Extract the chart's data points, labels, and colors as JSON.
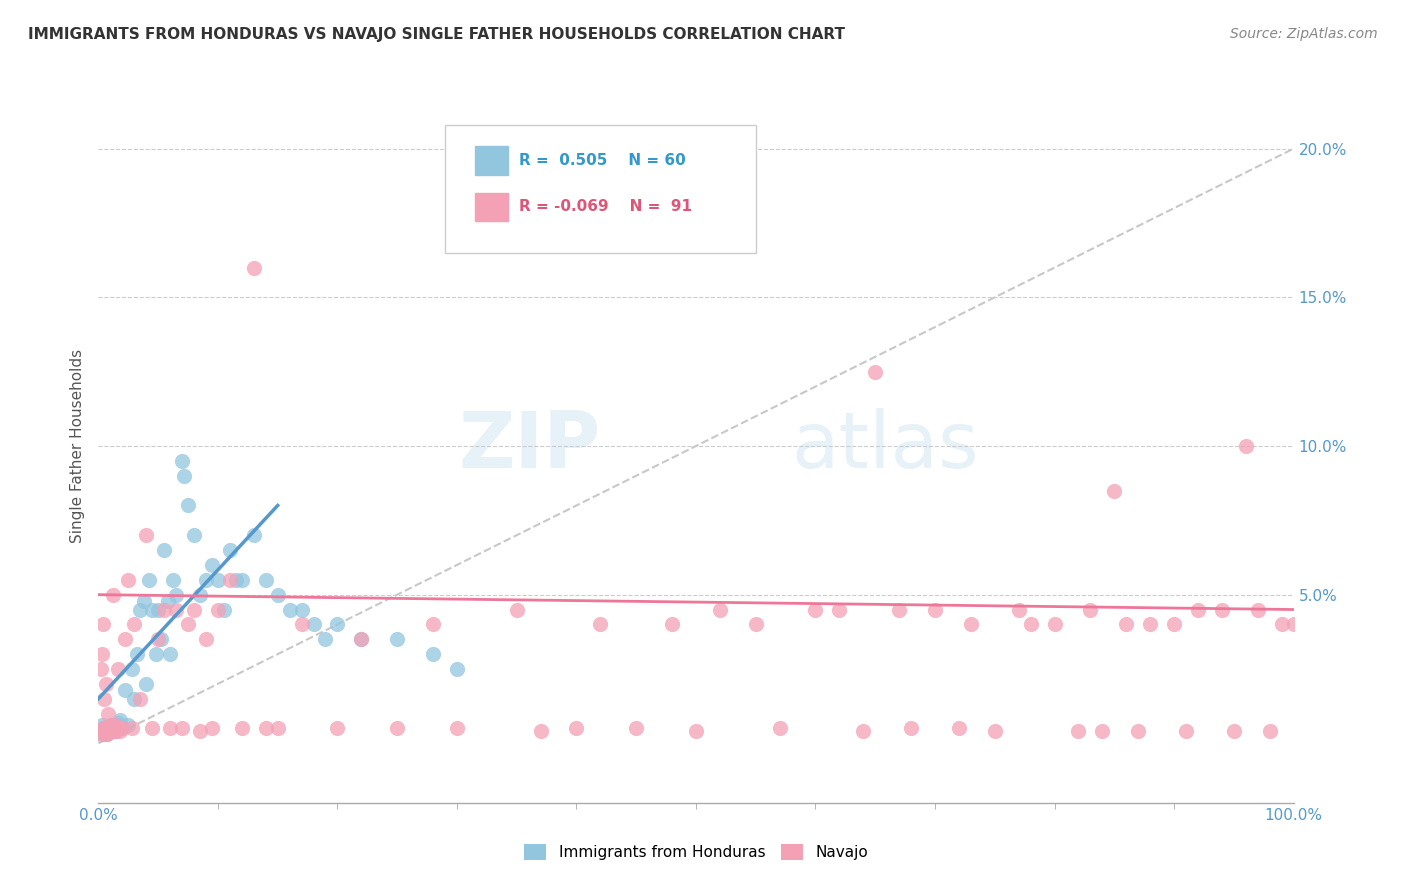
{
  "title": "IMMIGRANTS FROM HONDURAS VS NAVAJO SINGLE FATHER HOUSEHOLDS CORRELATION CHART",
  "source": "Source: ZipAtlas.com",
  "ylabel": "Single Father Households",
  "xlim": [
    0,
    100
  ],
  "ylim": [
    -2,
    22
  ],
  "legend_blue_label": "Immigrants from Honduras",
  "legend_pink_label": "Navajo",
  "blue_color": "#92C5DE",
  "pink_color": "#F4A0B5",
  "blue_line_color": "#5599CC",
  "pink_line_color": "#EE7799",
  "dashed_line_color": "#C8C8C8",
  "grid_color": "#CCCCCC",
  "ytick_color": "#5599CC",
  "xtick_color": "#5599CC",
  "title_color": "#333333",
  "source_color": "#888888",
  "legend_text_blue_color": "#3399CC",
  "legend_text_pink_color": "#DD5577",
  "blue_scatter": [
    [
      0.2,
      0.4
    ],
    [
      0.3,
      0.6
    ],
    [
      0.4,
      0.3
    ],
    [
      0.5,
      0.5
    ],
    [
      0.6,
      0.4
    ],
    [
      0.7,
      0.3
    ],
    [
      0.8,
      0.5
    ],
    [
      0.9,
      0.4
    ],
    [
      1.0,
      0.6
    ],
    [
      1.1,
      0.4
    ],
    [
      1.2,
      0.5
    ],
    [
      1.3,
      0.6
    ],
    [
      1.4,
      0.4
    ],
    [
      1.5,
      0.5
    ],
    [
      1.6,
      0.7
    ],
    [
      1.7,
      0.5
    ],
    [
      1.8,
      0.8
    ],
    [
      2.0,
      0.5
    ],
    [
      2.2,
      1.8
    ],
    [
      2.5,
      0.6
    ],
    [
      2.8,
      2.5
    ],
    [
      3.0,
      1.5
    ],
    [
      3.2,
      3.0
    ],
    [
      3.5,
      4.5
    ],
    [
      3.8,
      4.8
    ],
    [
      4.0,
      2.0
    ],
    [
      4.2,
      5.5
    ],
    [
      4.5,
      4.5
    ],
    [
      4.8,
      3.0
    ],
    [
      5.0,
      4.5
    ],
    [
      5.2,
      3.5
    ],
    [
      5.5,
      6.5
    ],
    [
      5.8,
      4.8
    ],
    [
      6.0,
      3.0
    ],
    [
      6.2,
      5.5
    ],
    [
      6.5,
      5.0
    ],
    [
      7.0,
      9.5
    ],
    [
      7.2,
      9.0
    ],
    [
      7.5,
      8.0
    ],
    [
      8.0,
      7.0
    ],
    [
      8.5,
      5.0
    ],
    [
      9.0,
      5.5
    ],
    [
      9.5,
      6.0
    ],
    [
      10.0,
      5.5
    ],
    [
      10.5,
      4.5
    ],
    [
      11.0,
      6.5
    ],
    [
      11.5,
      5.5
    ],
    [
      12.0,
      5.5
    ],
    [
      13.0,
      7.0
    ],
    [
      14.0,
      5.5
    ],
    [
      15.0,
      5.0
    ],
    [
      16.0,
      4.5
    ],
    [
      17.0,
      4.5
    ],
    [
      18.0,
      4.0
    ],
    [
      19.0,
      3.5
    ],
    [
      20.0,
      4.0
    ],
    [
      22.0,
      3.5
    ],
    [
      25.0,
      3.5
    ],
    [
      28.0,
      3.0
    ],
    [
      30.0,
      2.5
    ]
  ],
  "pink_scatter": [
    [
      0.1,
      0.3
    ],
    [
      0.2,
      2.5
    ],
    [
      0.3,
      3.0
    ],
    [
      0.35,
      0.5
    ],
    [
      0.4,
      4.0
    ],
    [
      0.45,
      0.5
    ],
    [
      0.5,
      1.5
    ],
    [
      0.55,
      0.3
    ],
    [
      0.6,
      2.0
    ],
    [
      0.7,
      0.5
    ],
    [
      0.75,
      0.3
    ],
    [
      0.8,
      1.0
    ],
    [
      0.9,
      0.5
    ],
    [
      1.0,
      0.4
    ],
    [
      1.1,
      0.6
    ],
    [
      1.2,
      5.0
    ],
    [
      1.3,
      0.4
    ],
    [
      1.4,
      0.6
    ],
    [
      1.5,
      0.4
    ],
    [
      1.6,
      2.5
    ],
    [
      1.7,
      0.5
    ],
    [
      1.8,
      0.4
    ],
    [
      2.0,
      0.5
    ],
    [
      2.2,
      3.5
    ],
    [
      2.5,
      5.5
    ],
    [
      2.8,
      0.5
    ],
    [
      3.0,
      4.0
    ],
    [
      3.5,
      1.5
    ],
    [
      4.0,
      7.0
    ],
    [
      4.5,
      0.5
    ],
    [
      5.0,
      3.5
    ],
    [
      5.5,
      4.5
    ],
    [
      6.0,
      0.5
    ],
    [
      6.5,
      4.5
    ],
    [
      7.0,
      0.5
    ],
    [
      7.5,
      4.0
    ],
    [
      8.0,
      4.5
    ],
    [
      8.5,
      0.4
    ],
    [
      9.0,
      3.5
    ],
    [
      9.5,
      0.5
    ],
    [
      10.0,
      4.5
    ],
    [
      11.0,
      5.5
    ],
    [
      12.0,
      0.5
    ],
    [
      13.0,
      16.0
    ],
    [
      14.0,
      0.5
    ],
    [
      15.0,
      0.5
    ],
    [
      17.0,
      4.0
    ],
    [
      20.0,
      0.5
    ],
    [
      22.0,
      3.5
    ],
    [
      25.0,
      0.5
    ],
    [
      28.0,
      4.0
    ],
    [
      30.0,
      0.5
    ],
    [
      35.0,
      4.5
    ],
    [
      37.0,
      0.4
    ],
    [
      40.0,
      0.5
    ],
    [
      42.0,
      4.0
    ],
    [
      45.0,
      0.5
    ],
    [
      48.0,
      4.0
    ],
    [
      50.0,
      0.4
    ],
    [
      52.0,
      4.5
    ],
    [
      55.0,
      4.0
    ],
    [
      57.0,
      0.5
    ],
    [
      60.0,
      4.5
    ],
    [
      62.0,
      4.5
    ],
    [
      64.0,
      0.4
    ],
    [
      65.0,
      12.5
    ],
    [
      67.0,
      4.5
    ],
    [
      68.0,
      0.5
    ],
    [
      70.0,
      4.5
    ],
    [
      72.0,
      0.5
    ],
    [
      73.0,
      4.0
    ],
    [
      75.0,
      0.4
    ],
    [
      77.0,
      4.5
    ],
    [
      78.0,
      4.0
    ],
    [
      80.0,
      4.0
    ],
    [
      82.0,
      0.4
    ],
    [
      83.0,
      4.5
    ],
    [
      84.0,
      0.4
    ],
    [
      85.0,
      8.5
    ],
    [
      86.0,
      4.0
    ],
    [
      87.0,
      0.4
    ],
    [
      88.0,
      4.0
    ],
    [
      90.0,
      4.0
    ],
    [
      91.0,
      0.4
    ],
    [
      92.0,
      4.5
    ],
    [
      94.0,
      4.5
    ],
    [
      95.0,
      0.4
    ],
    [
      96.0,
      10.0
    ],
    [
      97.0,
      4.5
    ],
    [
      98.0,
      0.4
    ],
    [
      99.0,
      4.0
    ],
    [
      100.0,
      4.0
    ]
  ]
}
